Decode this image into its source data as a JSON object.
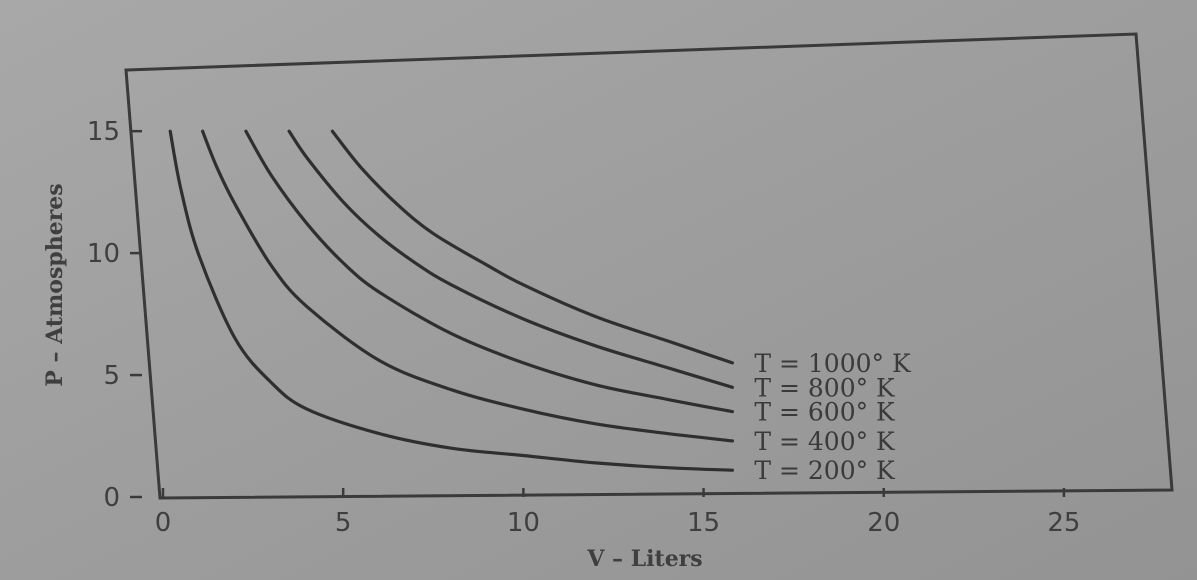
{
  "chart_data": {
    "type": "line",
    "xlabel": "V – Liters",
    "ylabel": "P – Atmospheres",
    "xlim": [
      0,
      27
    ],
    "ylim": [
      0,
      18
    ],
    "xticks": [
      0,
      5,
      10,
      15,
      20,
      25
    ],
    "yticks": [
      0,
      5,
      10,
      15
    ],
    "x_tick_labels": [
      "0",
      "5",
      "10",
      "15",
      "20",
      "25"
    ],
    "y_tick_labels": [
      "0",
      "5",
      "10",
      "15"
    ],
    "grid": false,
    "legend": "inline labels at right end of curves",
    "series": [
      {
        "name": "T = 200° K",
        "label": "T = 200° K",
        "x": [
          0.2,
          0.5,
          1,
          2,
          3,
          4,
          6,
          8,
          10,
          12,
          14,
          15.8
        ],
        "y": [
          15,
          12.6,
          9.9,
          6.5,
          4.7,
          3.6,
          2.6,
          2.0,
          1.7,
          1.4,
          1.2,
          1.1
        ]
      },
      {
        "name": "T = 400° K",
        "label": "T = 400° K",
        "x": [
          1.1,
          1.5,
          2,
          3,
          4,
          6,
          8,
          10,
          12,
          14,
          15.8
        ],
        "y": [
          15,
          13.5,
          12.0,
          9.5,
          7.8,
          5.6,
          4.4,
          3.6,
          3.0,
          2.6,
          2.3
        ]
      },
      {
        "name": "T = 600° K",
        "label": "T = 600° K",
        "x": [
          2.3,
          3,
          4,
          5,
          6,
          8,
          10,
          12,
          14,
          15.8
        ],
        "y": [
          15,
          13.2,
          11.2,
          9.6,
          8.4,
          6.7,
          5.5,
          4.6,
          4.0,
          3.5
        ]
      },
      {
        "name": "T = 800° K",
        "label": "T = 800° K",
        "x": [
          3.5,
          4,
          5,
          6,
          7,
          8,
          10,
          12,
          14,
          15.8
        ],
        "y": [
          15,
          13.9,
          12.1,
          10.7,
          9.6,
          8.7,
          7.3,
          6.2,
          5.3,
          4.5
        ]
      },
      {
        "name": "T = 1000° K",
        "label": "T = 1000° K",
        "x": [
          4.7,
          5.5,
          6.5,
          7.5,
          9,
          10,
          12,
          14,
          15.8
        ],
        "y": [
          15,
          13.5,
          12.0,
          10.8,
          9.5,
          8.7,
          7.4,
          6.4,
          5.5
        ]
      }
    ]
  }
}
